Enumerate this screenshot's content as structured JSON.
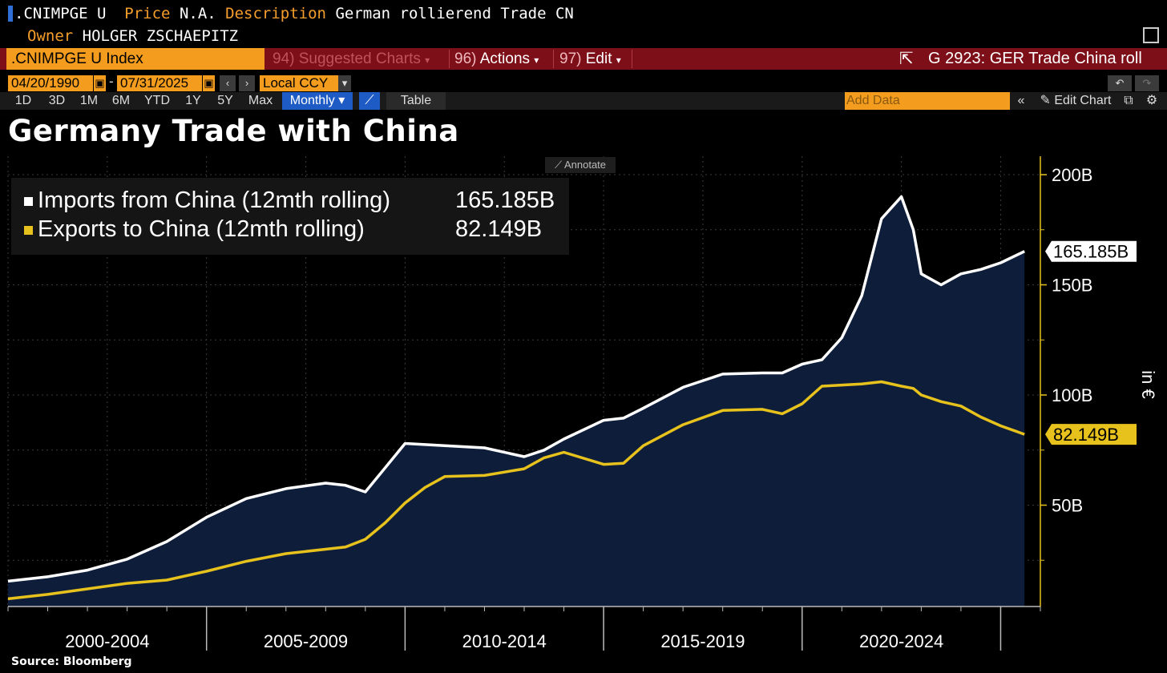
{
  "header": {
    "ticker": ".CNIMPGE U",
    "price_label": "Price",
    "price_value": "N.A.",
    "description_label": "Description",
    "description_value": "German rollierend Trade CN",
    "owner_label": "Owner",
    "owner_value": "HOLGER ZSCHAEPITZ"
  },
  "command_bar": {
    "index": ".CNIMPGE U Index",
    "suggested_num": "94)",
    "suggested": "Suggested Charts",
    "actions_num": "96)",
    "actions": "Actions",
    "edit_num": "97)",
    "edit": "Edit",
    "page": "G 2923: GER Trade China roll"
  },
  "date_bar": {
    "start": "04/20/1990",
    "end": "07/31/2025",
    "currency": "Local CCY"
  },
  "period_bar": {
    "periods": [
      "1D",
      "3D",
      "1M",
      "6M",
      "YTD",
      "1Y",
      "5Y",
      "Max"
    ],
    "frequency": "Monthly",
    "table": "Table",
    "add_data_placeholder": "Add Data",
    "edit_chart": "Edit Chart"
  },
  "annotate": "Annotate",
  "colors": {
    "imports": "#ffffff",
    "exports": "#e7c21d",
    "fill": "#0e1e3a",
    "bar_red": "#7d0f19",
    "orange": "#f39c1e"
  },
  "chart_data": {
    "type": "area",
    "title": "Germany Trade with China",
    "source": "Source: Bloomberg",
    "unit_label": "in €",
    "x_period_labels": [
      "2000-2004",
      "2005-2009",
      "2010-2014",
      "2015-2019",
      "2020-2024"
    ],
    "y_ticks": [
      "50B",
      "100B",
      "150B",
      "200B"
    ],
    "ylim": [
      0,
      200
    ],
    "xlim": [
      2000.0,
      2026.0
    ],
    "grid": true,
    "legend_position": "top-left",
    "series": [
      {
        "name": "Imports from China (12mth rolling)",
        "last_value": "165.185B",
        "x": [
          2000.0,
          2001.0,
          2002.0,
          2003.0,
          2004.0,
          2005.0,
          2006.0,
          2007.0,
          2008.0,
          2008.5,
          2009.0,
          2009.5,
          2010.0,
          2010.5,
          2011.0,
          2012.0,
          2013.0,
          2013.5,
          2014.0,
          2015.0,
          2015.5,
          2016.0,
          2017.0,
          2018.0,
          2019.0,
          2019.5,
          2020.0,
          2020.5,
          2021.0,
          2021.5,
          2022.0,
          2022.5,
          2022.8,
          2023.0,
          2023.5,
          2024.0,
          2024.5,
          2025.0,
          2025.6
        ],
        "y": [
          15.5,
          17.5,
          20.5,
          25.5,
          33.5,
          44.5,
          53,
          57.5,
          60,
          59,
          56,
          67,
          78,
          77.5,
          77,
          76,
          72,
          75,
          80,
          88.5,
          89.5,
          94,
          103.5,
          109.5,
          110,
          110,
          114,
          116,
          126,
          145,
          180,
          190,
          175,
          155,
          150,
          155,
          157,
          160,
          165.185
        ]
      },
      {
        "name": "Exports to China (12mth rolling)",
        "last_value": "82.149B",
        "x": [
          2000.0,
          2001.0,
          2002.0,
          2003.0,
          2004.0,
          2005.0,
          2006.0,
          2007.0,
          2008.0,
          2008.5,
          2009.0,
          2009.5,
          2010.0,
          2010.5,
          2011.0,
          2012.0,
          2013.0,
          2013.5,
          2014.0,
          2015.0,
          2015.5,
          2016.0,
          2017.0,
          2018.0,
          2019.0,
          2019.5,
          2020.0,
          2020.5,
          2021.0,
          2021.5,
          2022.0,
          2022.5,
          2022.8,
          2023.0,
          2023.5,
          2024.0,
          2024.5,
          2025.0,
          2025.6
        ],
        "y": [
          7.5,
          9.5,
          12,
          14.5,
          16,
          20,
          24.5,
          28,
          30,
          31,
          34.5,
          42,
          51,
          58,
          63,
          63.5,
          66.5,
          71.5,
          74,
          68.5,
          69,
          77,
          86.5,
          93,
          93.5,
          91.5,
          96,
          104,
          104.5,
          105,
          106,
          104,
          103,
          100,
          97,
          95,
          90,
          86,
          82.149
        ]
      }
    ]
  }
}
